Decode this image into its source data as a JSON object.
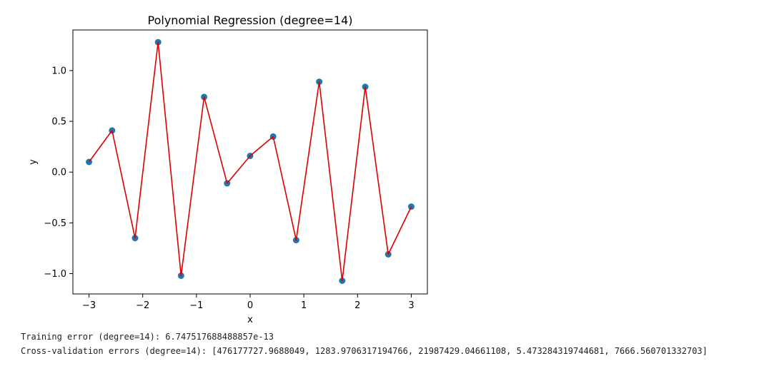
{
  "chart_data": {
    "type": "scatter+line",
    "title": "Polynomial Regression (degree=14)",
    "xlabel": "x",
    "ylabel": "y",
    "xlim": [
      -3.3,
      3.3
    ],
    "ylim": [
      -1.2,
      1.4
    ],
    "xticks": [
      -3,
      -2,
      -1,
      0,
      1,
      2,
      3
    ],
    "xtick_labels": [
      "−3",
      "−2",
      "−1",
      "0",
      "1",
      "2",
      "3"
    ],
    "yticks": [
      -1.0,
      -0.5,
      0.0,
      0.5,
      1.0
    ],
    "ytick_labels": [
      "−1.0",
      "−0.5",
      "0.0",
      "0.5",
      "1.0"
    ],
    "grid": false,
    "series": [
      {
        "kind": "scatter",
        "color": "#1f77b4",
        "x": [
          -3.0,
          -2.571,
          -2.143,
          -1.714,
          -1.286,
          -0.857,
          -0.429,
          0.0,
          0.429,
          0.857,
          1.286,
          1.714,
          2.143,
          2.571,
          3.0
        ],
        "y": [
          0.1,
          0.41,
          -0.65,
          1.28,
          -1.02,
          0.74,
          -0.11,
          0.16,
          0.35,
          -0.67,
          0.89,
          -1.07,
          0.84,
          -0.81,
          -0.34
        ]
      },
      {
        "kind": "line",
        "color": "#dd0000",
        "x": [
          -3.0,
          -2.571,
          -2.143,
          -1.714,
          -1.286,
          -0.857,
          -0.429,
          0.0,
          0.429,
          0.857,
          1.286,
          1.714,
          2.143,
          2.571,
          3.0
        ],
        "y": [
          0.1,
          0.41,
          -0.65,
          1.28,
          -1.02,
          0.74,
          -0.11,
          0.16,
          0.35,
          -0.67,
          0.89,
          -1.07,
          0.84,
          -0.81,
          -0.34
        ]
      }
    ]
  },
  "output": {
    "training_error": "Training error (degree=14): 6.747517688488857e-13",
    "cv_errors": "Cross-validation errors (degree=14): [476177727.9688049, 1283.9706317194766, 21987429.04661108, 5.473284319744681, 7666.560701332703]"
  }
}
